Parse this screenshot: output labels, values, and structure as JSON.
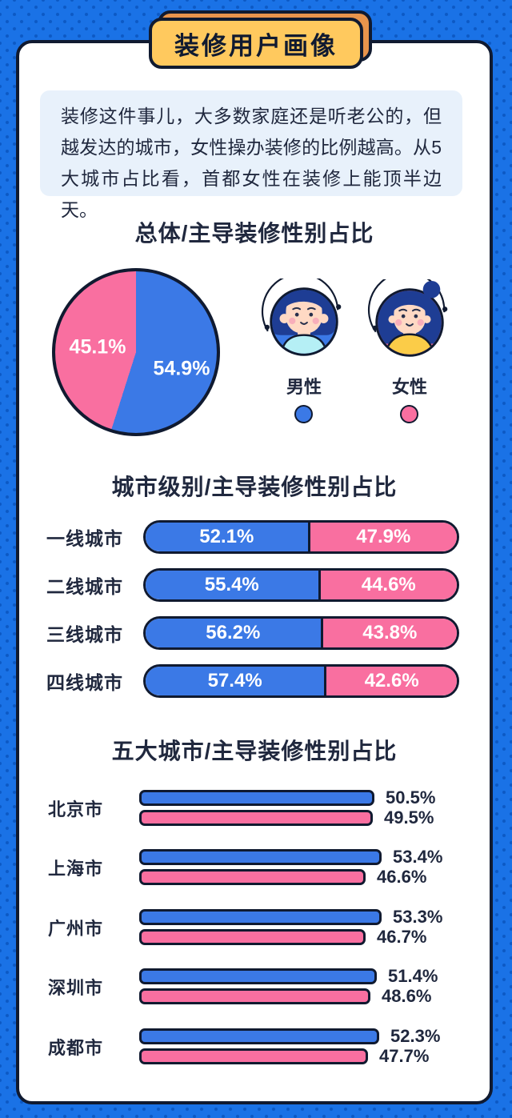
{
  "banner": {
    "title": "装修用户画像"
  },
  "intro": {
    "text": "装修这件事儿，大多数家庭还是听老公的，但越发达的城市，女性操办装修的比例越高。从5大城市占比看，首都女性在装修上能顶半边天。"
  },
  "legend": {
    "male": "男性",
    "female": "女性"
  },
  "colors": {
    "page_bg": "#1A72E6",
    "page_dot": "#0C59C4",
    "male": "#3B79E6",
    "female": "#F96FA0",
    "outline": "#101A30",
    "text": "#20283E",
    "banner_yellow": "#FFC95E",
    "banner_orange": "#E8944C",
    "intro_bg": "#E8F1FB"
  },
  "chart_data": [
    {
      "type": "pie",
      "title": "总体/主导装修性别占比",
      "labels": [
        "男性",
        "女性"
      ],
      "values": [
        54.9,
        45.1
      ],
      "colors": [
        "#3B79E6",
        "#F96FA0"
      ],
      "start_angle_deg": 0,
      "direction": "clockwise",
      "value_suffix": "%",
      "legend_position": "right"
    },
    {
      "type": "bar",
      "subtype": "horizontal-stacked",
      "title": "城市级别/主导装修性别占比",
      "categories": [
        "一线城市",
        "二线城市",
        "三线城市",
        "四线城市"
      ],
      "series": [
        {
          "name": "男性",
          "color": "#3B79E6",
          "values": [
            52.1,
            55.4,
            56.2,
            57.4
          ]
        },
        {
          "name": "女性",
          "color": "#F96FA0",
          "values": [
            47.9,
            44.6,
            43.8,
            42.6
          ]
        }
      ],
      "xlim": [
        0,
        100
      ],
      "value_suffix": "%",
      "grid": false
    },
    {
      "type": "bar",
      "subtype": "horizontal-grouped",
      "title": "五大城市/主导装修性别占比",
      "categories": [
        "北京市",
        "上海市",
        "广州市",
        "深圳市",
        "成都市"
      ],
      "series": [
        {
          "name": "男性",
          "color": "#3B79E6",
          "values": [
            50.5,
            53.4,
            53.3,
            51.4,
            52.3
          ]
        },
        {
          "name": "女性",
          "color": "#F96FA0",
          "values": [
            49.5,
            46.6,
            46.7,
            48.6,
            47.7
          ]
        }
      ],
      "value_suffix": "%",
      "grid": false
    }
  ]
}
